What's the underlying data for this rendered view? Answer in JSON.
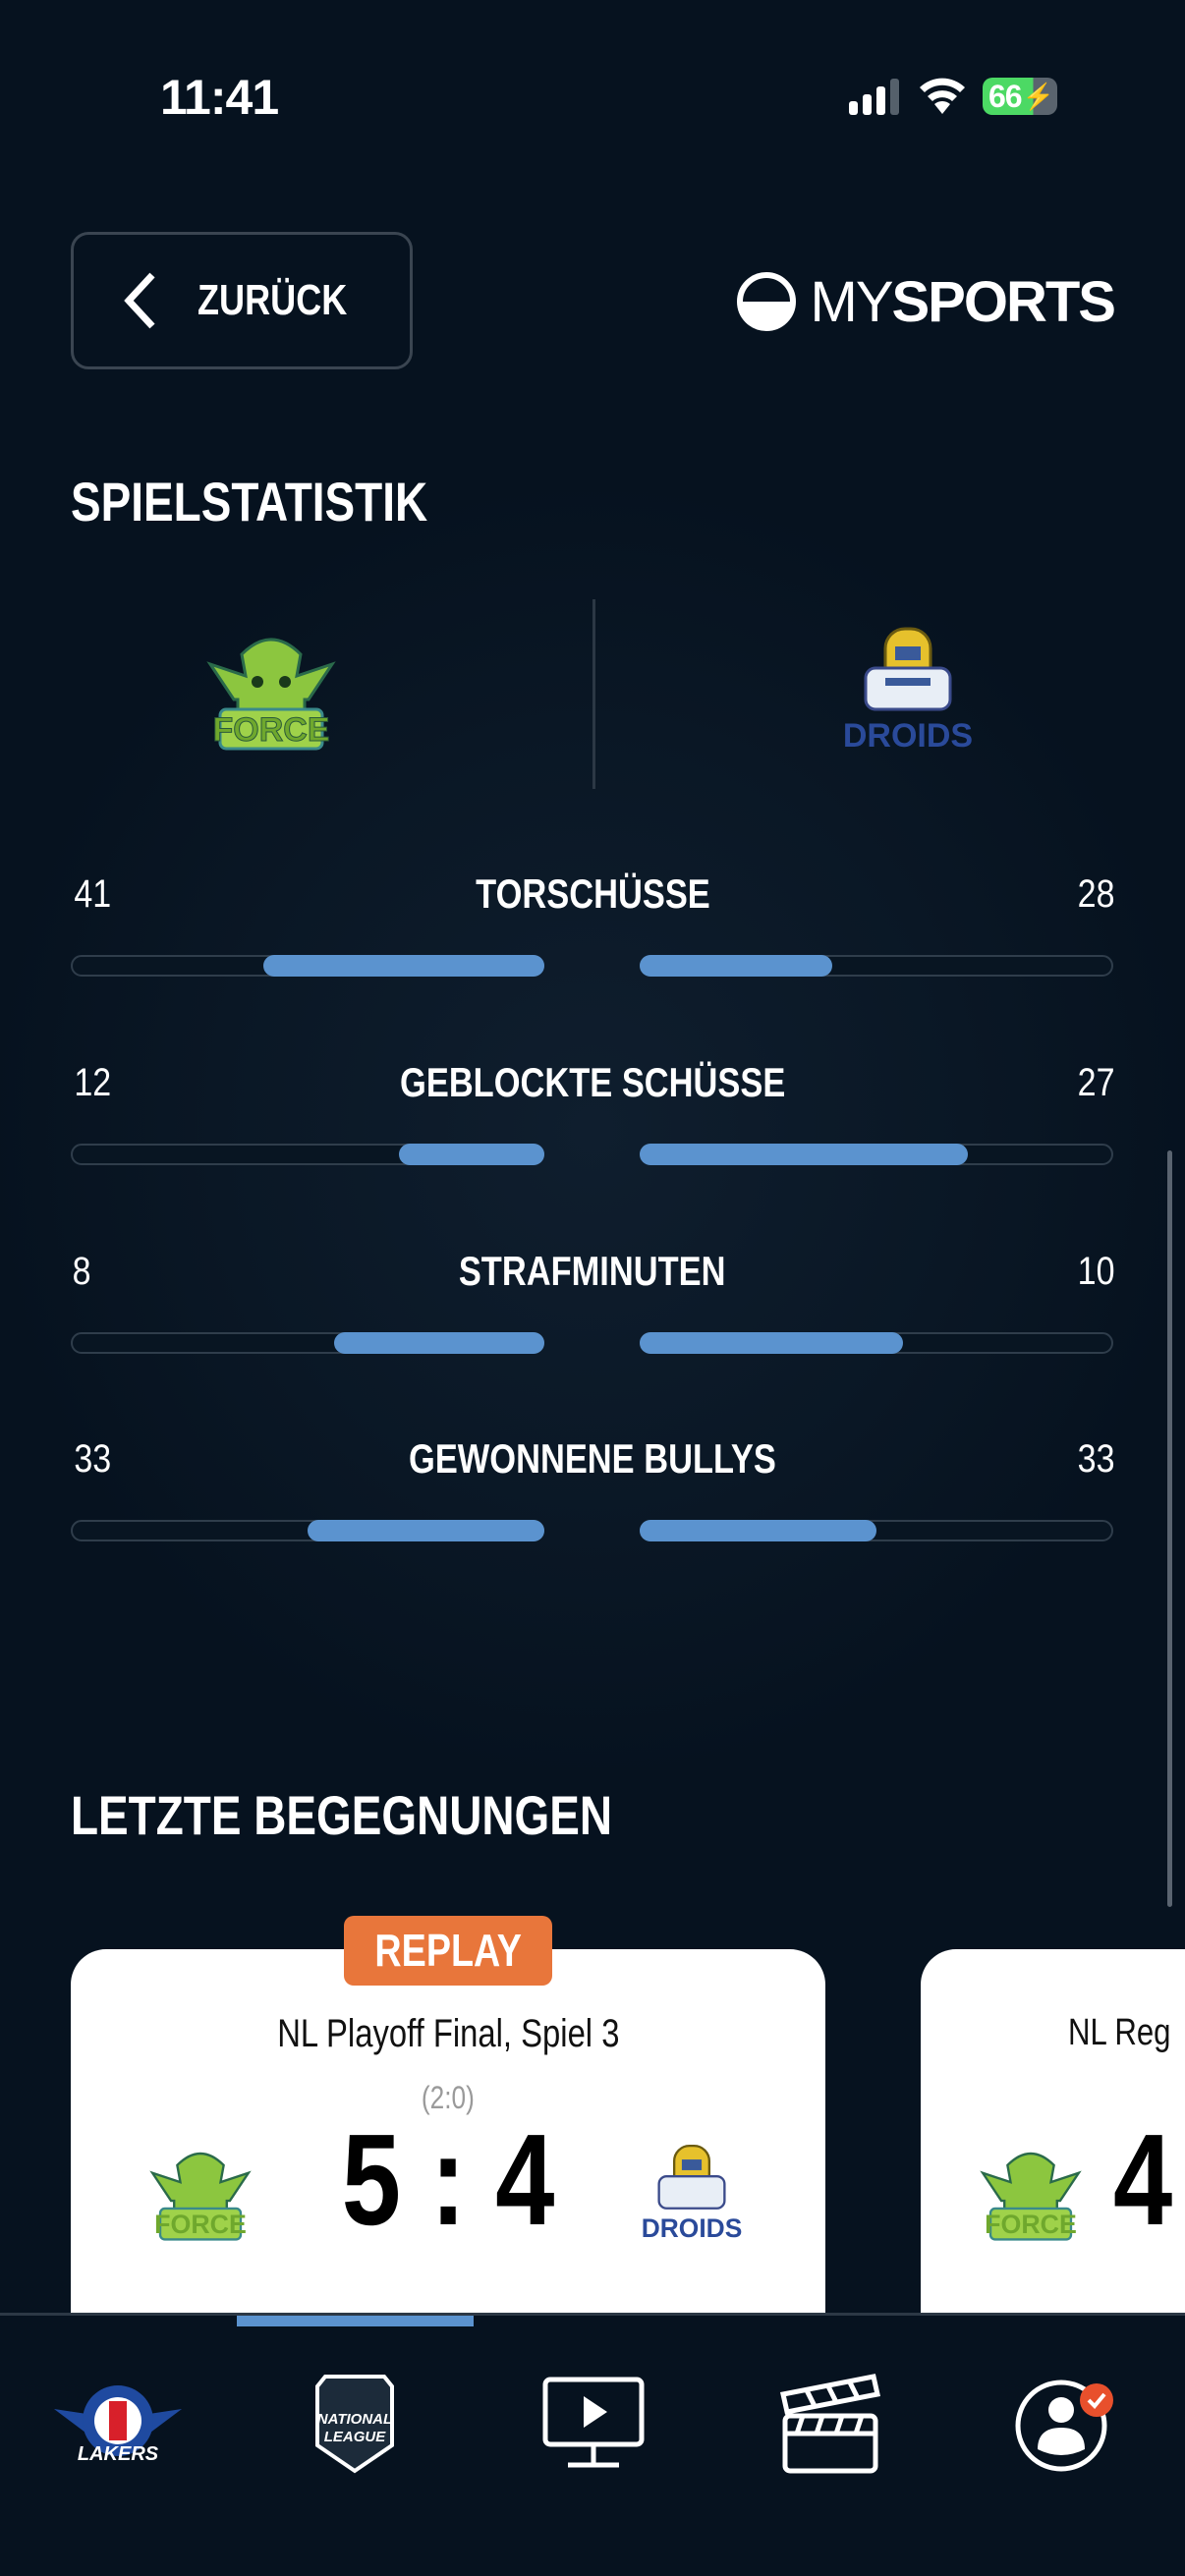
{
  "status_bar": {
    "time": "11:41",
    "battery": "66"
  },
  "header": {
    "back_label": "ZURÜCK",
    "logo_my": "MY",
    "logo_sports": "SPORTS"
  },
  "stats": {
    "title": "SPIELSTATISTIK",
    "home_team": "FORCE",
    "away_team": "DROIDS",
    "rows": [
      {
        "label": "TORSCHÜSSE",
        "home": 41,
        "away": 28
      },
      {
        "label": "GEBLOCKTE SCHÜSSE",
        "home": 12,
        "away": 27
      },
      {
        "label": "STRAFMINUTEN",
        "home": 8,
        "away": 10
      },
      {
        "label": "GEWONNENE BULLYS",
        "home": 33,
        "away": 33
      }
    ],
    "bar_color": "#5b93cf"
  },
  "recent": {
    "title": "LETZTE BEGEGNUNGEN",
    "cards": [
      {
        "badge": "REPLAY",
        "title": "NL Playoff Final, Spiel 3",
        "period": "(2:0)",
        "home_score": "5",
        "sep": ":",
        "away_score": "4",
        "home_team": "FORCE",
        "away_team": "DROIDS"
      },
      {
        "title": "NL Reg",
        "home_score": "4",
        "home_team": "FORCE"
      }
    ],
    "badge_color": "#e8763b"
  },
  "nav": {
    "items": [
      "lakers-icon",
      "national-league-icon",
      "tv-play-icon",
      "clapperboard-icon",
      "profile-icon"
    ],
    "active": 1,
    "lakers_text": "LAKERS",
    "nl_text": "NATIONAL LEAGUE"
  }
}
